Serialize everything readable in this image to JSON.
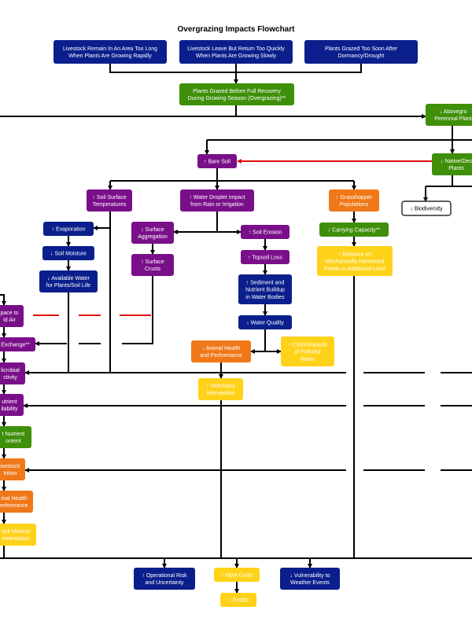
{
  "title": "Overgrazing Impacts Flowchart",
  "nodes": [
    {
      "lines": [
        "Livestock Remain In An Area Too Long",
        "When Plants Are Growing  Rapidly"
      ],
      "color": "#0a1f8c"
    },
    {
      "lines": [
        "Livestock Leave But Return Too Quickly",
        "When Plants Are Growing Slowly"
      ],
      "color": "#0a1f8c"
    },
    {
      "lines": [
        "Plants Grazed Too Soon After",
        "Dormancy/Drought"
      ],
      "color": "#0a1f8c"
    },
    {
      "lines": [
        "Plants Grazed Before Full Recovery",
        "During Growing Season (Overgrazing)**"
      ],
      "color": "#3f8f0a"
    },
    {
      "lines": [
        "↓ Abovegro",
        "Perennial Plant"
      ],
      "color": "#3f8f0a"
    },
    {
      "lines": [
        "↑ Bare Soil"
      ],
      "color": "#7a0f8a"
    },
    {
      "lines": [
        "↓ Native/Des",
        "Plants"
      ],
      "color": "#3f8f0a"
    },
    {
      "lines": [
        "↑ Soil Surface",
        "Temperatures"
      ],
      "color": "#7a0f8a"
    },
    {
      "lines": [
        "↑ Water Droplet Impact",
        "from Rain or Irrigation"
      ],
      "color": "#7a0f8a"
    },
    {
      "lines": [
        "↑ Grasshopper",
        "Populations"
      ],
      "color": "#f07818"
    },
    {
      "lines": [
        "↓ Biodiversity"
      ],
      "color": "#ffffff"
    },
    {
      "lines": [
        "↑ Evaporation"
      ],
      "color": "#0a1f8c"
    },
    {
      "lines": [
        "↓ Surface",
        "Aggregation"
      ],
      "color": "#7a0f8a"
    },
    {
      "lines": [
        "↑ Soil Erosion"
      ],
      "color": "#7a0f8a"
    },
    {
      "lines": [
        "↓ Carrying Capacity**"
      ],
      "color": "#3f8f0a"
    },
    {
      "lines": [
        "↓ Soil Moisture"
      ],
      "color": "#0a1f8c"
    },
    {
      "lines": [
        "↑ Topsoil Loss"
      ],
      "color": "#7a0f8a"
    },
    {
      "lines": [
        "↑ Reliance on",
        "Mechanically-Harvested",
        "Feeds or Additional Land"
      ],
      "color": "#ffd21a"
    },
    {
      "lines": [
        "↑ Surface",
        "Crusts"
      ],
      "color": "#7a0f8a"
    },
    {
      "lines": [
        "↓ Available Water",
        "for Plants/Soil Life"
      ],
      "color": "#0a1f8c"
    },
    {
      "lines": [
        "↑ Sediment and",
        "Nutrient Buildup",
        "in Water Bodies"
      ],
      "color": "#0a1f8c"
    },
    {
      "lines": [
        "pace to",
        "ld Air"
      ],
      "color": "#7a0f8a"
    },
    {
      "lines": [
        "↓ Water Quality"
      ],
      "color": "#0a1f8c"
    },
    {
      "lines": [
        "Exchange**"
      ],
      "color": "#7a0f8a"
    },
    {
      "lines": [
        "↓ Animal Health",
        "and Performance"
      ],
      "color": "#f07818"
    },
    {
      "lines": [
        "↑ Costs/Impacts",
        "of Polluted",
        "Water"
      ],
      "color": "#ffd21a"
    },
    {
      "lines": [
        "licrobial",
        "ctivity"
      ],
      "color": "#7a0f8a"
    },
    {
      "lines": [
        "↑ Veterinary",
        "Intervention"
      ],
      "color": "#ffd21a"
    },
    {
      "lines": [
        "utrient",
        "ilability"
      ],
      "color": "#7a0f8a"
    },
    {
      "lines": [
        "t Nutrient",
        "ontent"
      ],
      "color": "#3f8f0a"
    },
    {
      "lines": [
        "ivestock",
        "trition"
      ],
      "color": "#f07818"
    },
    {
      "lines": [
        "mal Health",
        "erformance"
      ],
      "color": "#f07818"
    },
    {
      "lines": [
        "ock Mineral",
        "ementation"
      ],
      "color": "#ffd21a"
    },
    {
      "lines": [
        "↑ Operational Risk",
        "and Uncertainty"
      ],
      "color": "#0a1f8c"
    },
    {
      "lines": [
        "↑ Input Costs"
      ],
      "color": "#ffd21a"
    },
    {
      "lines": [
        "↓ Vulnerability to",
        "Weather Events"
      ],
      "color": "#0a1f8c"
    },
    {
      "lines": [
        "↓ Profits"
      ],
      "color": "#ffd21a"
    }
  ]
}
